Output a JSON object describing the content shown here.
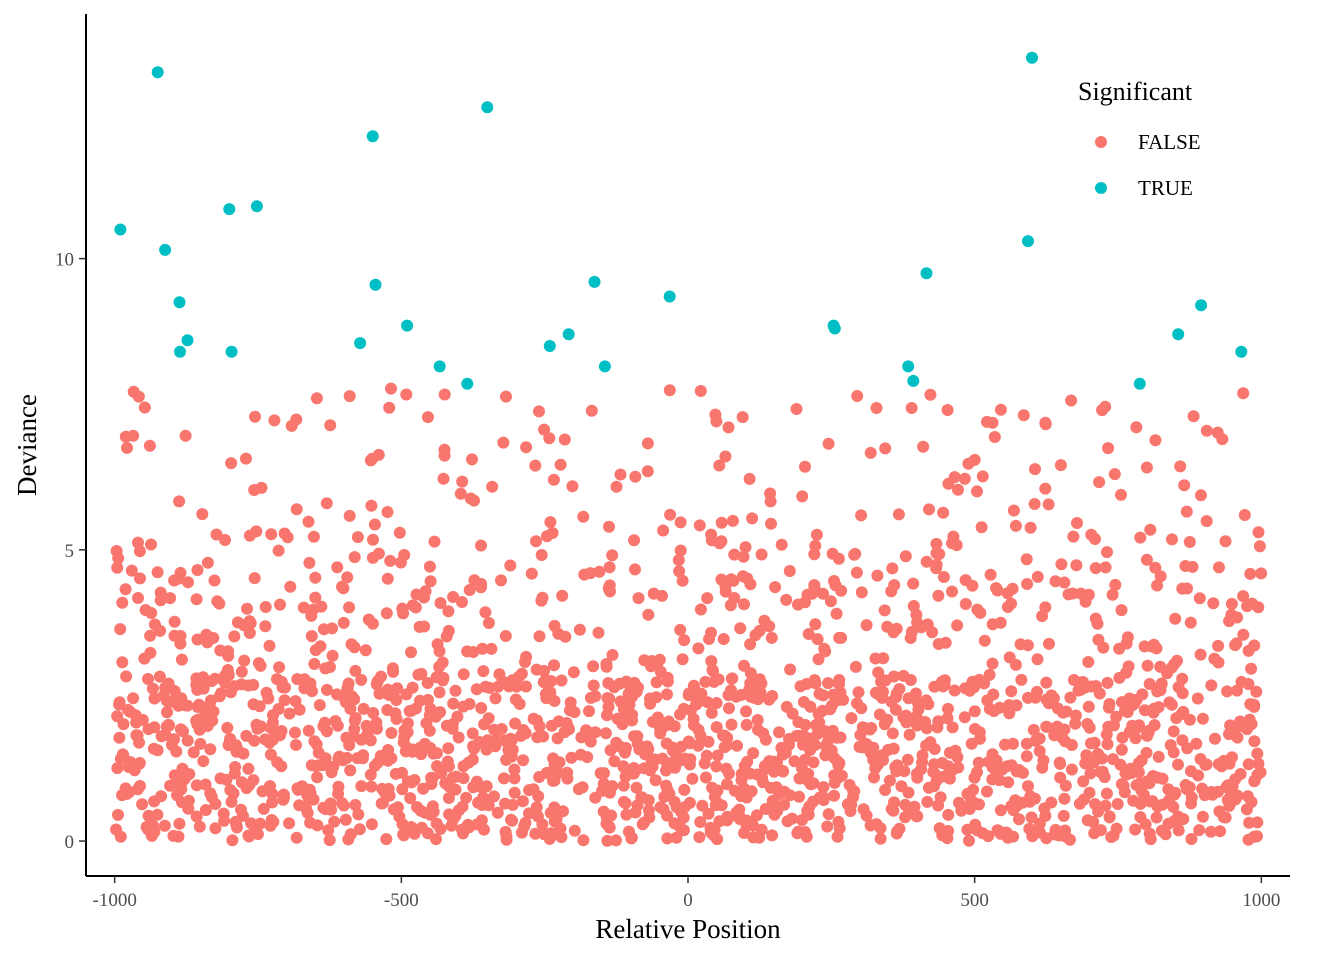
{
  "chart_data": {
    "type": "scatter",
    "title": "",
    "xlabel": "Relative Position",
    "ylabel": "Deviance",
    "xlim": [
      -1050,
      1050
    ],
    "ylim": [
      -0.6,
      14.2
    ],
    "x_ticks": [
      -1000,
      -500,
      0,
      500,
      1000
    ],
    "x_tick_labels": [
      "-1000",
      "-500",
      "0",
      "500",
      "1000"
    ],
    "y_ticks": [
      0,
      5,
      10
    ],
    "y_tick_labels": [
      "0",
      "5",
      "10"
    ],
    "grid": false,
    "legend": {
      "title": "Significant",
      "position": "top-right",
      "entries": [
        {
          "label": "FALSE",
          "color": "#F8766D"
        },
        {
          "label": "TRUE",
          "color": "#00BFC4"
        }
      ]
    },
    "series": [
      {
        "name": "TRUE",
        "color": "#00BFC4",
        "points": [
          [
            -990,
            10.5
          ],
          [
            -925,
            13.2
          ],
          [
            -912,
            10.15
          ],
          [
            -887,
            9.25
          ],
          [
            -886,
            8.4
          ],
          [
            -873,
            8.6
          ],
          [
            -800,
            10.85
          ],
          [
            -796,
            8.4
          ],
          [
            -752,
            10.9
          ],
          [
            -572,
            8.55
          ],
          [
            -550,
            12.1
          ],
          [
            -545,
            9.55
          ],
          [
            -490,
            8.85
          ],
          [
            -433,
            8.15
          ],
          [
            -385,
            7.85
          ],
          [
            -350,
            12.6
          ],
          [
            -241,
            8.5
          ],
          [
            -208,
            8.7
          ],
          [
            -163,
            9.6
          ],
          [
            -145,
            8.15
          ],
          [
            -32,
            9.35
          ],
          [
            254,
            8.85
          ],
          [
            256,
            8.8
          ],
          [
            384,
            8.15
          ],
          [
            393,
            7.9
          ],
          [
            416,
            9.75
          ],
          [
            593,
            10.3
          ],
          [
            600,
            13.45
          ],
          [
            788,
            7.85
          ],
          [
            855,
            8.7
          ],
          [
            895,
            9.2
          ],
          [
            965,
            8.4
          ]
        ]
      },
      {
        "name": "FALSE",
        "color": "#F8766D",
        "summary": "2000 non-significant positions spread uniformly across -1000..1000; deviance values mostly between 0 and 3, thinning out toward 5, with a sparse tail up to about 7.8",
        "points_x_range": [
          -1000,
          1000
        ],
        "deviance_range": [
          0,
          7.8
        ],
        "count": 2000,
        "seed": 42
      }
    ]
  }
}
